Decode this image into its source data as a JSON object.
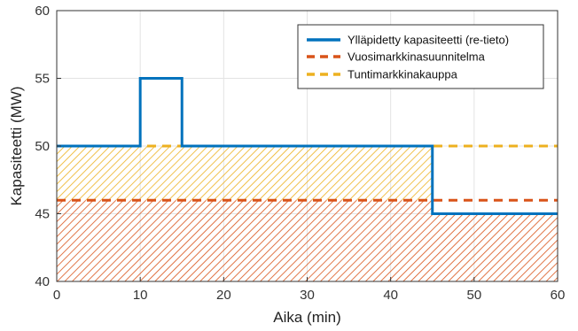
{
  "chart_data": {
    "type": "line",
    "title": "",
    "xlabel": "Aika (min)",
    "ylabel": "Kapasiteetti (MW)",
    "xlim": [
      0,
      60
    ],
    "ylim": [
      40,
      60
    ],
    "xticks": [
      0,
      10,
      20,
      30,
      40,
      50,
      60
    ],
    "yticks": [
      40,
      45,
      50,
      55,
      60
    ],
    "grid": true,
    "legend_position": "top-right",
    "series": [
      {
        "name": "Ylläpidetty kapasiteetti (re-tieto)",
        "style": "solid",
        "color": "#0072BD",
        "x": [
          0,
          10,
          10,
          15,
          15,
          45,
          45,
          60
        ],
        "y": [
          50,
          50,
          55,
          55,
          50,
          50,
          45,
          45
        ]
      },
      {
        "name": "Vuosimarkkinasuunnitelma",
        "style": "dashed",
        "color": "#D95319",
        "x": [
          0,
          60
        ],
        "y": [
          46,
          46
        ]
      },
      {
        "name": "Tuntimarkkinakauppa",
        "style": "dashed",
        "color": "#EDB120",
        "x": [
          0,
          60
        ],
        "y": [
          50,
          50
        ]
      }
    ],
    "hatched_areas": [
      {
        "color": "#D95319",
        "x": [
          0,
          45,
          45,
          60
        ],
        "y_low": 40,
        "y_high": [
          46,
          46,
          45,
          45
        ]
      },
      {
        "color": "#EDB120",
        "x": [
          0,
          45
        ],
        "y_low": 46,
        "y_high": [
          50,
          50
        ]
      }
    ]
  }
}
